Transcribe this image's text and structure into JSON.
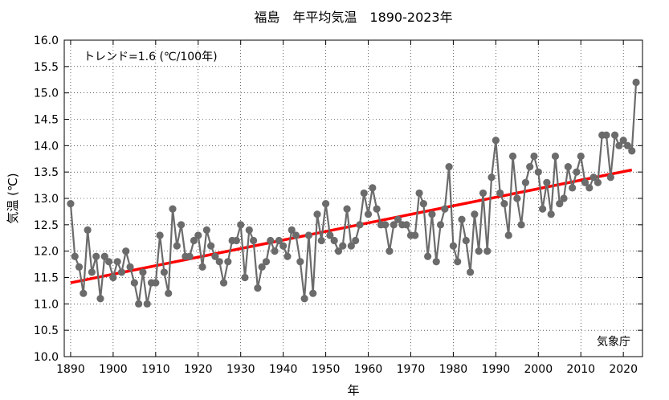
{
  "chart_data": {
    "type": "line",
    "title": "福島　年平均気温　1890-2023年",
    "xlabel": "年",
    "ylabel": "気温 (℃)",
    "xlim": [
      1888.5,
      2024.5
    ],
    "ylim": [
      10.0,
      16.0
    ],
    "xticks": [
      1890,
      1900,
      1910,
      1920,
      1930,
      1940,
      1950,
      1960,
      1970,
      1980,
      1990,
      2000,
      2010,
      2020
    ],
    "yticks": [
      10.0,
      10.5,
      11.0,
      11.5,
      12.0,
      12.5,
      13.0,
      13.5,
      14.0,
      14.5,
      15.0,
      15.5,
      16.0
    ],
    "trend_label": "トレンド=1.6 (℃/100年)",
    "trend": {
      "x": [
        1890,
        2022
      ],
      "y": [
        11.4,
        13.54
      ],
      "color": "#ff0000"
    },
    "credit": "気象庁",
    "series_color": "#6b6b6b",
    "series": [
      {
        "x": [
          1890,
          1891,
          1892,
          1893,
          1894,
          1895,
          1896,
          1897,
          1898,
          1899,
          1900,
          1901,
          1902,
          1903,
          1904,
          1905,
          1906,
          1907,
          1908,
          1909,
          1910,
          1911,
          1912,
          1913,
          1914,
          1915,
          1916,
          1917,
          1918,
          1919,
          1920,
          1921,
          1922,
          1923,
          1924,
          1925,
          1926,
          1927,
          1928,
          1929,
          1930,
          1931,
          1932,
          1933,
          1934,
          1935,
          1936,
          1937,
          1938,
          1939,
          1940,
          1941,
          1942,
          1943,
          1944,
          1945,
          1946,
          1947,
          1948,
          1949,
          1950,
          1951,
          1952,
          1953,
          1954,
          1955,
          1956,
          1957,
          1958,
          1959,
          1960,
          1961,
          1962,
          1963,
          1964,
          1965,
          1966,
          1967,
          1968,
          1969,
          1970,
          1971,
          1972,
          1973,
          1974,
          1975,
          1976,
          1977,
          1978,
          1979,
          1980,
          1981,
          1982,
          1983,
          1984,
          1985,
          1986,
          1987,
          1988,
          1989,
          1990,
          1991,
          1992,
          1993,
          1994,
          1995,
          1996,
          1997,
          1998,
          1999,
          2000,
          2001,
          2002,
          2003,
          2004,
          2005,
          2006,
          2007,
          2008,
          2009,
          2010,
          2011,
          2012,
          2013,
          2014,
          2015,
          2016,
          2017,
          2018,
          2019,
          2020,
          2021,
          2022,
          2023
        ],
        "values": [
          12.9,
          11.9,
          11.7,
          11.2,
          12.4,
          11.6,
          11.9,
          11.1,
          11.9,
          11.8,
          11.5,
          11.8,
          11.6,
          12.0,
          11.7,
          11.4,
          11.0,
          11.6,
          11.0,
          11.4,
          11.4,
          12.3,
          11.6,
          11.2,
          12.8,
          12.1,
          12.5,
          11.9,
          11.9,
          12.2,
          12.3,
          11.7,
          12.4,
          12.1,
          11.9,
          11.8,
          11.4,
          11.8,
          12.2,
          12.2,
          12.5,
          11.5,
          12.4,
          12.2,
          11.3,
          11.7,
          11.8,
          12.2,
          12.0,
          12.2,
          12.1,
          11.9,
          12.4,
          12.3,
          11.8,
          11.1,
          12.3,
          11.2,
          12.7,
          12.2,
          12.9,
          12.3,
          12.2,
          12.0,
          12.1,
          12.8,
          12.1,
          12.2,
          12.5,
          13.1,
          12.7,
          13.2,
          12.8,
          12.5,
          12.5,
          12.0,
          12.5,
          12.6,
          12.5,
          12.5,
          12.3,
          12.3,
          13.1,
          12.9,
          11.9,
          12.7,
          11.8,
          12.5,
          12.8,
          13.6,
          12.1,
          11.8,
          12.6,
          12.2,
          11.6,
          12.7,
          12.0,
          13.1,
          12.0,
          13.4,
          14.1,
          13.1,
          12.9,
          12.3,
          13.8,
          13.0,
          12.5,
          13.3,
          13.6,
          13.8,
          13.5,
          12.8,
          13.3,
          12.7,
          13.8,
          12.9,
          13.0,
          13.6,
          13.2,
          13.5,
          13.8,
          13.3,
          13.2,
          13.4,
          13.3,
          14.2,
          14.2,
          13.4,
          14.2,
          14.0,
          14.1,
          14.0,
          13.9,
          15.2
        ]
      }
    ]
  }
}
